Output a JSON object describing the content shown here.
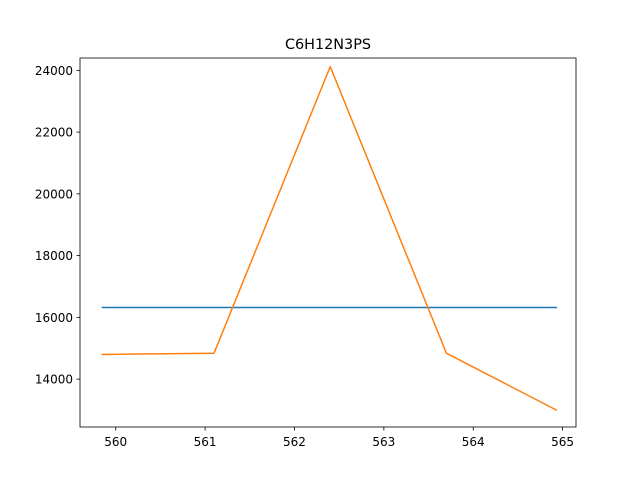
{
  "chart_data": {
    "type": "line",
    "title": "C6H12N3PS",
    "xlabel": "",
    "ylabel": "",
    "xlim": [
      559.6,
      565.15
    ],
    "ylim": [
      12450,
      24400
    ],
    "x_ticks": [
      560,
      561,
      562,
      563,
      564,
      565
    ],
    "y_ticks": [
      14000,
      16000,
      18000,
      20000,
      22000,
      24000
    ],
    "grid": false,
    "series": [
      {
        "color": "#1f77b4",
        "x": [
          559.85,
          564.93
        ],
        "y": [
          16320,
          16320
        ]
      },
      {
        "color": "#ff7f0e",
        "x": [
          559.85,
          561.1,
          562.4,
          563.7,
          564.93
        ],
        "y": [
          14800,
          14840,
          24120,
          14840,
          13000
        ]
      }
    ]
  }
}
